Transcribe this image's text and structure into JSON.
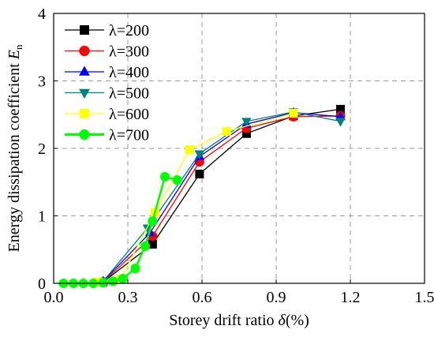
{
  "chart_data": {
    "type": "line",
    "xlabel": "Storey drift ratio δ(%)",
    "xlabel_main": "Storey drift ratio ",
    "xlabel_symbol": "δ",
    "xlabel_unit": "(%)",
    "ylabel": "Energy dissipation coefficient En",
    "ylabel_main": "Energy dissipation coefficient ",
    "ylabel_symbol": "E",
    "ylabel_sub": "n",
    "xlim": [
      0.0,
      1.5
    ],
    "ylim": [
      0,
      4
    ],
    "xticks": [
      "0.0",
      "0.3",
      "0.6",
      "0.9",
      "1.2",
      "1.5"
    ],
    "yticks": [
      "0",
      "1",
      "2",
      "3",
      "4"
    ],
    "grid": "dashed",
    "legend_position": "top-left",
    "series": [
      {
        "name": "λ=200",
        "color": "#000000",
        "marker": "square",
        "x": [
          0.2,
          0.4,
          0.59,
          0.78,
          0.97,
          1.16
        ],
        "y": [
          0.02,
          0.58,
          1.62,
          2.22,
          2.48,
          2.58
        ]
      },
      {
        "name": "λ=300",
        "color": "#ff0000",
        "marker": "circle",
        "x": [
          0.2,
          0.4,
          0.59,
          0.78,
          0.97,
          1.16
        ],
        "y": [
          0.02,
          0.7,
          1.8,
          2.3,
          2.47,
          2.48
        ]
      },
      {
        "name": "λ=400",
        "color": "#0000ff",
        "marker": "triangle-up",
        "x": [
          0.2,
          0.39,
          0.59,
          0.78,
          0.97,
          1.16
        ],
        "y": [
          0.03,
          0.75,
          1.88,
          2.36,
          2.53,
          2.47
        ]
      },
      {
        "name": "λ=500",
        "color": "#008080",
        "marker": "triangle-down",
        "x": [
          0.2,
          0.38,
          0.59,
          0.78,
          0.97,
          1.16
        ],
        "y": [
          0.03,
          0.82,
          1.92,
          2.4,
          2.54,
          2.4
        ]
      },
      {
        "name": "λ=600",
        "color": "#ffff00",
        "marker": "square",
        "x": [
          0.18,
          0.27,
          0.41,
          0.55,
          0.7,
          0.97
        ],
        "y": [
          0.02,
          0.06,
          1.05,
          1.98,
          2.25,
          2.52
        ]
      },
      {
        "name": "λ=700",
        "color": "#00ff00",
        "marker": "circle",
        "x": [
          0.04,
          0.08,
          0.12,
          0.16,
          0.2,
          0.24,
          0.28,
          0.33,
          0.37,
          0.4,
          0.45,
          0.5
        ],
        "y": [
          0.0,
          0.0,
          0.0,
          0.0,
          0.01,
          0.03,
          0.07,
          0.22,
          0.55,
          0.92,
          1.58,
          1.53
        ]
      }
    ]
  }
}
